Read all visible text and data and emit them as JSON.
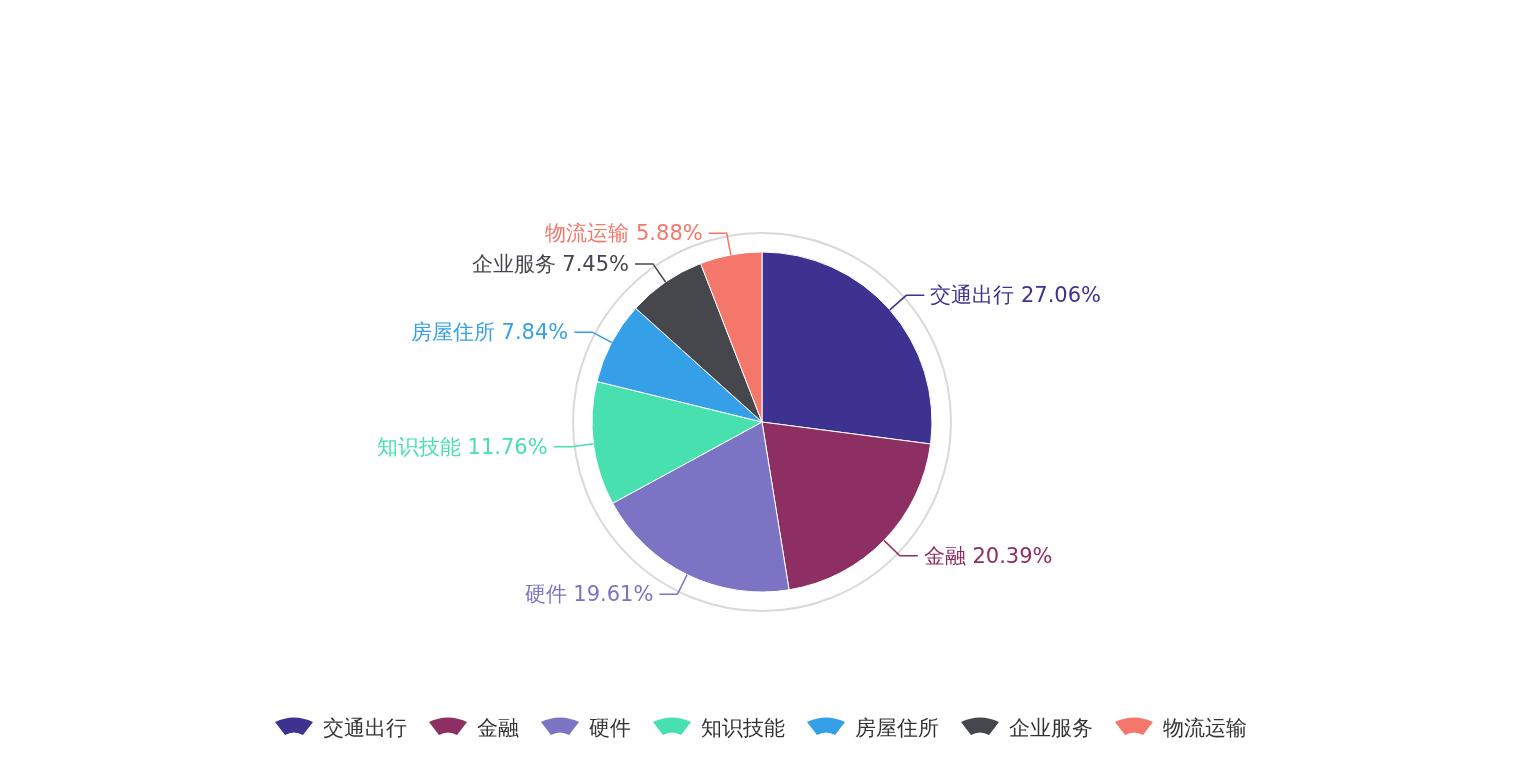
{
  "chart_data": {
    "type": "pie",
    "categories": [
      "交通出行",
      "金融",
      "硬件",
      "知识技能",
      "房屋住所",
      "企业服务",
      "物流运输"
    ],
    "values": [
      27.06,
      20.39,
      19.61,
      11.76,
      7.84,
      7.45,
      5.88
    ],
    "colors": [
      "#3d3290",
      "#8e2f63",
      "#7b73c4",
      "#47e0ae",
      "#35a0e8",
      "#45474d",
      "#f5766a"
    ],
    "value_labels": [
      "27.06%",
      "20.39%",
      "19.61%",
      "11.76%",
      "7.84%",
      "7.45%",
      "5.88%"
    ],
    "legend": "bottom"
  }
}
